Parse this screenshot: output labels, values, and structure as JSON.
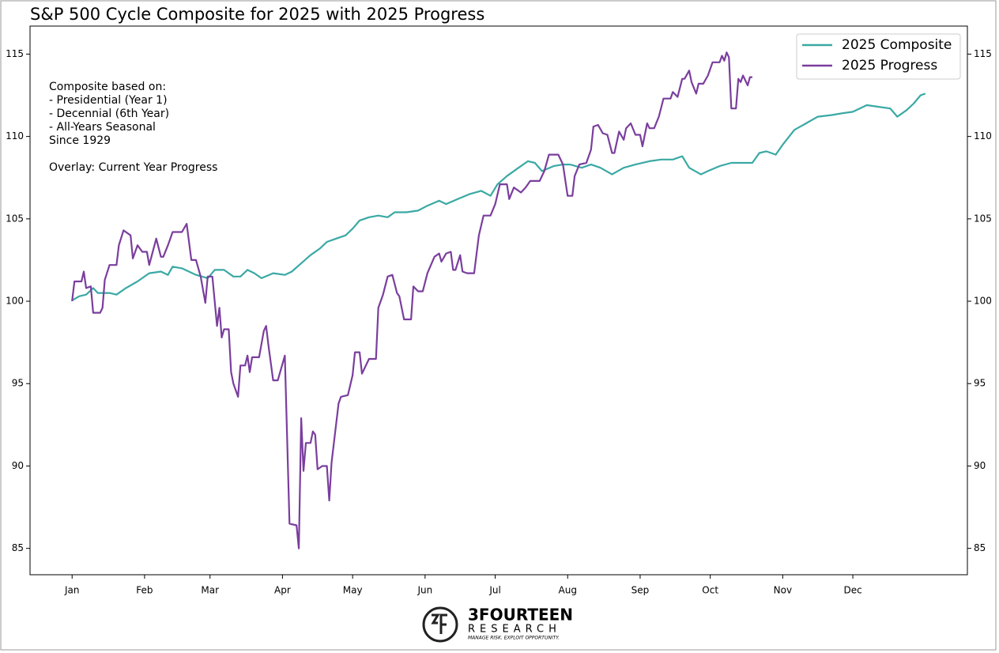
{
  "chart_data": {
    "type": "line",
    "title": "S&P 500 Cycle Composite for 2025 with 2025 Progress",
    "notes": [
      "Composite based on:",
      "- Presidential (Year 1)",
      "- Decennial (6th Year)",
      "- All-Years Seasonal",
      "Since 1929",
      "Overlay: Current Year Progress"
    ],
    "xlim": [
      -18,
      383
    ],
    "xticks": [
      {
        "value": 0,
        "label": "Jan"
      },
      {
        "value": 31,
        "label": "Feb"
      },
      {
        "value": 59,
        "label": "Mar"
      },
      {
        "value": 90,
        "label": "Apr"
      },
      {
        "value": 120,
        "label": "May"
      },
      {
        "value": 151,
        "label": "Jun"
      },
      {
        "value": 181,
        "label": "Jul"
      },
      {
        "value": 212,
        "label": "Aug"
      },
      {
        "value": 243,
        "label": "Sep"
      },
      {
        "value": 273,
        "label": "Oct"
      },
      {
        "value": 304,
        "label": "Nov"
      },
      {
        "value": 334,
        "label": "Dec"
      }
    ],
    "ylim": [
      83.4,
      116.7
    ],
    "yticks": [
      85,
      90,
      95,
      100,
      105,
      110,
      115
    ],
    "legend": "upper right",
    "series": [
      {
        "name": "2025 Composite",
        "color": "#3aa9a4",
        "x": [
          0,
          3,
          6,
          9,
          11,
          16,
          19,
          23,
          28,
          33,
          38,
          41,
          43,
          47,
          53,
          58,
          61,
          65,
          69,
          72,
          75,
          78,
          81,
          86,
          91,
          94,
          98,
          102,
          106,
          109,
          113,
          117,
          120,
          123,
          127,
          131,
          135,
          138,
          143,
          148,
          152,
          157,
          160,
          165,
          170,
          175,
          179,
          182,
          186,
          191,
          195,
          198,
          201,
          206,
          210,
          213,
          218,
          222,
          226,
          231,
          236,
          241,
          247,
          252,
          257,
          261,
          264,
          269,
          272,
          277,
          282,
          287,
          291,
          294,
          297,
          301,
          304,
          309,
          314,
          319,
          325,
          329,
          334,
          340,
          345,
          350,
          353,
          357,
          360,
          363,
          365
        ],
        "values": [
          100.05,
          100.3,
          100.4,
          100.8,
          100.5,
          100.5,
          100.4,
          100.8,
          101.2,
          101.7,
          101.8,
          101.6,
          102.1,
          102.0,
          101.6,
          101.4,
          101.9,
          101.9,
          101.5,
          101.5,
          101.9,
          101.7,
          101.4,
          101.7,
          101.6,
          101.8,
          102.3,
          102.8,
          103.2,
          103.6,
          103.8,
          104.0,
          104.4,
          104.9,
          105.1,
          105.2,
          105.1,
          105.4,
          105.4,
          105.5,
          105.8,
          106.1,
          105.9,
          106.2,
          106.5,
          106.7,
          106.4,
          107.1,
          107.6,
          108.1,
          108.5,
          108.4,
          107.9,
          108.2,
          108.3,
          108.3,
          108.1,
          108.3,
          108.1,
          107.7,
          108.1,
          108.3,
          108.5,
          108.6,
          108.6,
          108.8,
          108.1,
          107.7,
          107.9,
          108.2,
          108.4,
          108.4,
          108.4,
          109.0,
          109.1,
          108.9,
          109.5,
          110.4,
          110.8,
          111.2,
          111.3,
          111.4,
          111.5,
          111.9,
          111.8,
          111.7,
          111.2,
          111.6,
          112.0,
          112.5,
          112.6
        ]
      },
      {
        "name": "2025 Progress",
        "color": "#7a3e9d",
        "x": [
          0,
          1,
          4,
          5,
          6,
          8,
          9,
          12,
          13,
          14,
          16,
          19,
          20,
          22,
          25,
          26,
          28,
          30,
          32,
          33,
          36,
          38,
          39,
          41,
          43,
          47,
          49,
          51,
          53,
          55,
          57,
          58,
          60,
          62,
          63,
          64,
          65,
          67,
          68,
          69,
          71,
          72,
          74,
          75,
          76,
          77,
          80,
          82,
          83,
          84,
          86,
          88,
          91,
          93,
          96,
          97,
          98,
          99,
          100,
          102,
          103,
          104,
          105,
          107,
          109,
          110,
          111,
          114,
          115,
          118,
          120,
          121,
          123,
          124,
          127,
          130,
          131,
          133,
          135,
          137,
          139,
          140,
          142,
          145,
          146,
          148,
          150,
          152,
          155,
          157,
          158,
          160,
          162,
          163,
          164,
          166,
          167,
          169,
          172,
          174,
          176,
          179,
          181,
          183,
          186,
          187,
          189,
          192,
          194,
          196,
          200,
          202,
          204,
          208,
          210,
          212,
          214,
          215,
          217,
          220,
          222,
          223,
          225,
          227,
          229,
          231,
          232,
          234,
          236,
          237,
          239,
          241,
          243,
          244,
          246,
          247,
          249,
          251,
          253,
          256,
          257,
          259,
          261,
          262,
          264,
          265,
          267,
          268,
          270,
          272,
          274,
          277,
          278,
          279,
          280,
          281,
          282,
          284,
          285,
          286,
          287,
          289,
          290,
          291
        ],
        "values": [
          100.0,
          101.2,
          101.2,
          101.8,
          100.8,
          100.9,
          99.3,
          99.3,
          99.6,
          101.3,
          102.2,
          102.2,
          103.4,
          104.3,
          104.0,
          102.6,
          103.4,
          103.0,
          103.0,
          102.2,
          103.8,
          102.7,
          102.7,
          103.4,
          104.2,
          104.2,
          104.7,
          102.5,
          102.5,
          101.5,
          99.9,
          101.5,
          101.5,
          98.5,
          99.6,
          97.8,
          98.3,
          98.3,
          95.7,
          95.0,
          94.2,
          96.1,
          96.1,
          96.7,
          95.7,
          96.6,
          96.6,
          98.2,
          98.5,
          97.3,
          95.2,
          95.2,
          96.7,
          86.5,
          86.4,
          85.0,
          92.9,
          89.7,
          91.4,
          91.4,
          92.1,
          91.9,
          89.8,
          90.0,
          90.0,
          87.9,
          90.2,
          93.8,
          94.2,
          94.3,
          95.5,
          96.9,
          96.9,
          95.6,
          96.5,
          96.5,
          99.6,
          100.4,
          101.5,
          101.6,
          100.5,
          100.3,
          98.9,
          98.9,
          100.9,
          100.6,
          100.6,
          101.7,
          102.7,
          102.9,
          102.4,
          102.9,
          103.0,
          101.9,
          101.9,
          102.8,
          101.8,
          101.7,
          101.7,
          104.0,
          105.2,
          105.2,
          105.9,
          107.1,
          107.1,
          106.2,
          106.9,
          106.6,
          106.9,
          107.3,
          107.3,
          107.9,
          108.9,
          108.9,
          108.3,
          106.4,
          106.4,
          107.6,
          108.3,
          108.4,
          109.2,
          110.6,
          110.7,
          110.2,
          110.1,
          109.0,
          109.0,
          110.3,
          109.8,
          110.5,
          110.8,
          110.1,
          110.1,
          109.4,
          110.8,
          110.5,
          110.5,
          111.2,
          112.3,
          112.3,
          112.7,
          112.4,
          113.5,
          113.5,
          114.0,
          113.3,
          112.6,
          113.2,
          113.2,
          113.7,
          114.5,
          114.5,
          114.9,
          114.6,
          115.1,
          114.8,
          111.7,
          111.7,
          113.5,
          113.3,
          113.7,
          113.1,
          113.6,
          113.6
        ]
      }
    ]
  },
  "footer": {
    "brand": "3FOURTEEN",
    "sub": "RESEARCH",
    "tagline": "MANAGE RISK. EXPLOIT OPPORTUNITY."
  }
}
